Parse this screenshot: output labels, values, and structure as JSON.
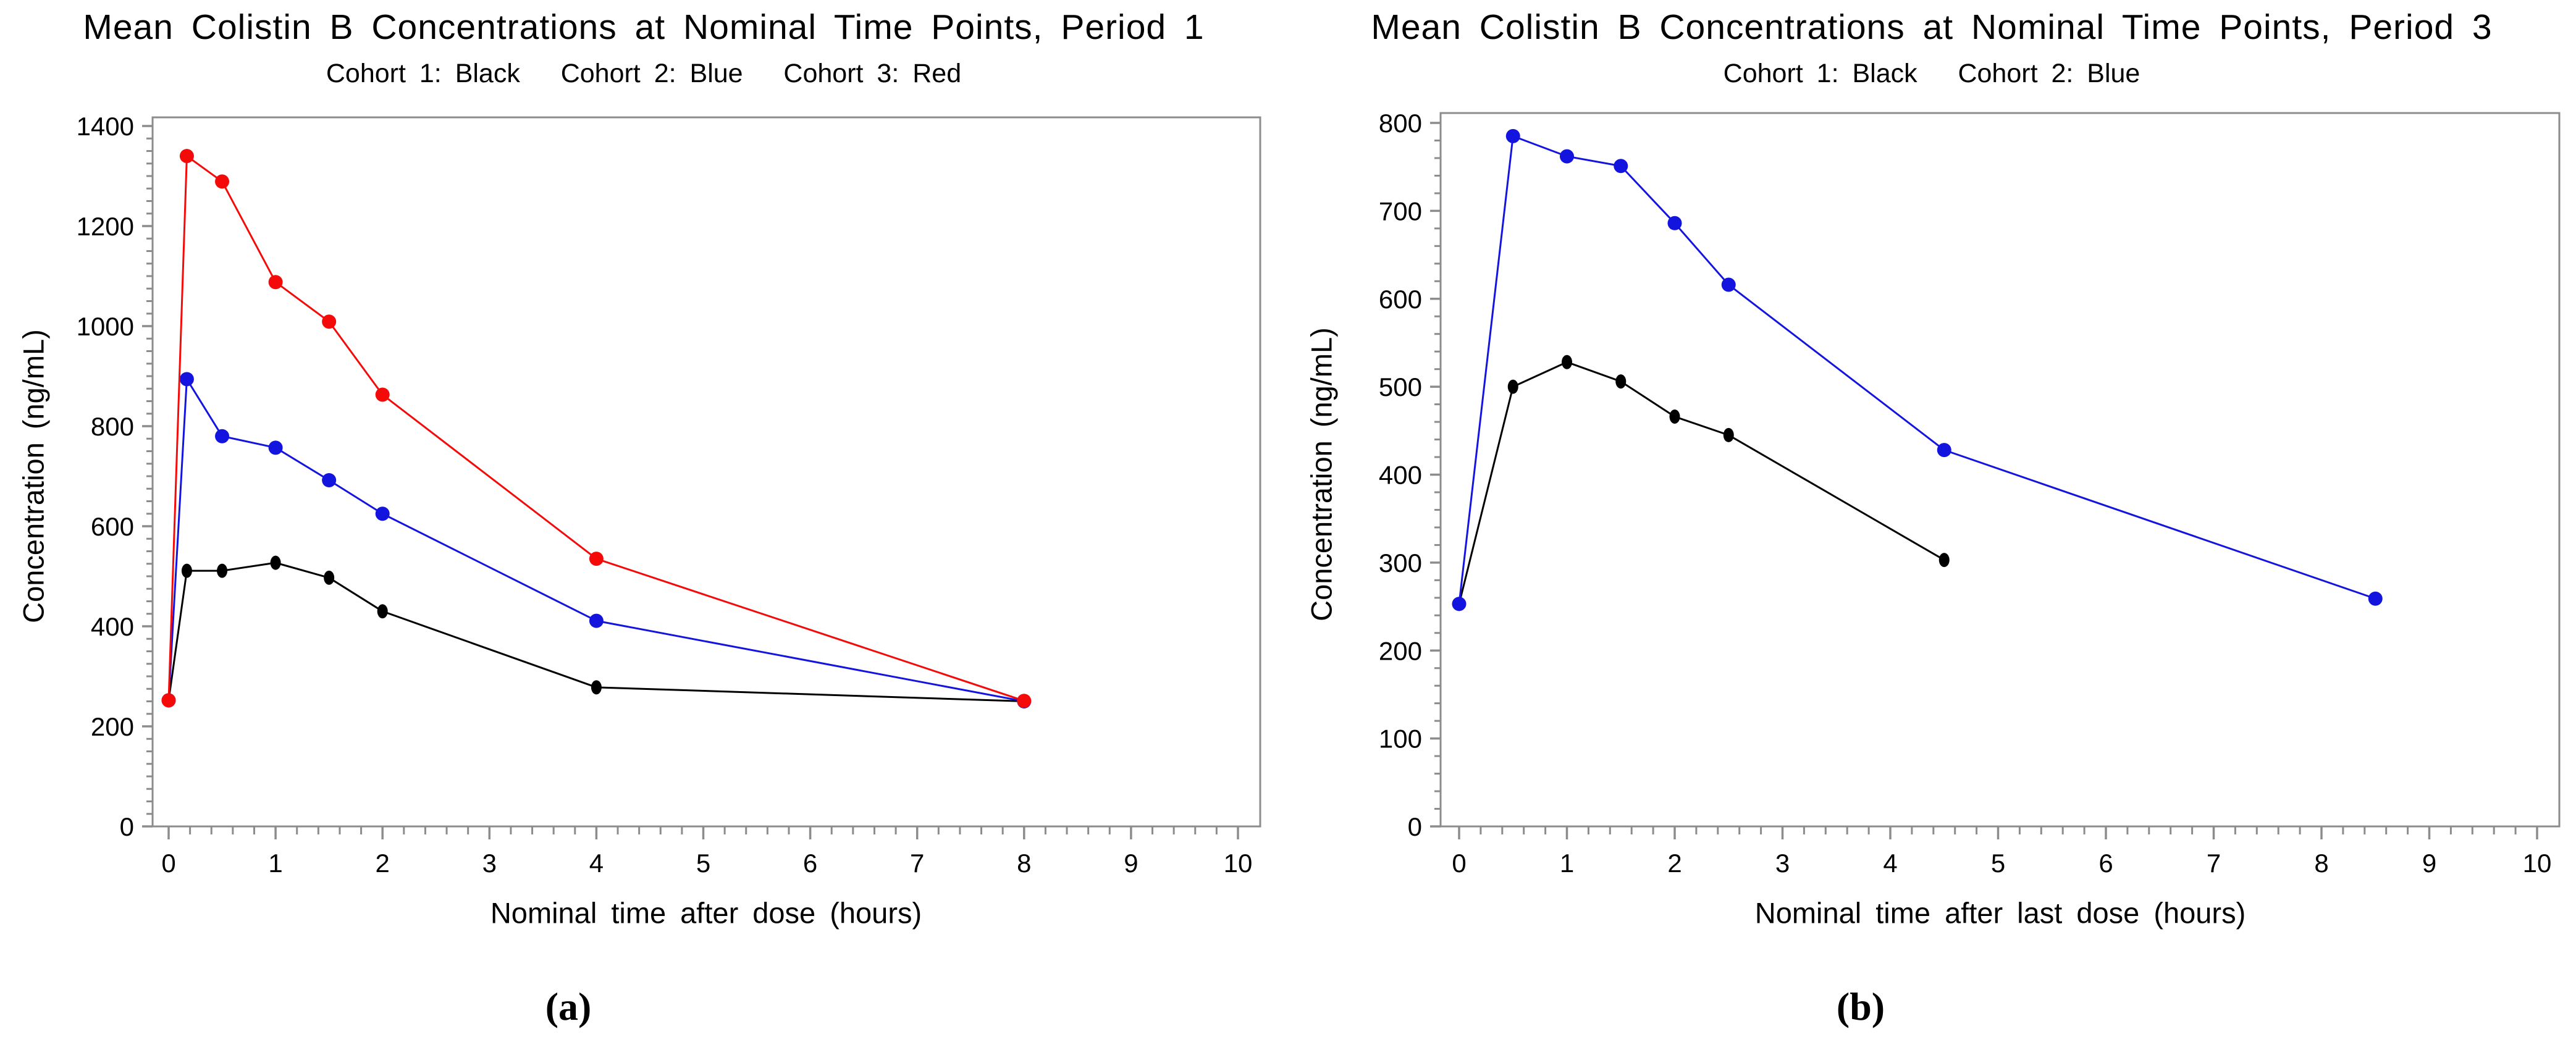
{
  "colors": {
    "cohort1_black": "#000000",
    "cohort2_blue": "#1414DF",
    "cohort3_red": "#F50A0A",
    "axis_frame_gray": "#8C8C8C",
    "text_black": "#000000"
  },
  "chart_data": [
    {
      "type": "line",
      "panel": "a",
      "title": "Mean Colistin B Concentrations at Nominal Time Points, Period 1",
      "subtitle": "Cohort 1: Black   Cohort 2: Blue   Cohort 3: Red",
      "xlabel": "Nominal time after dose (hours)",
      "ylabel": "Concentration (ng/mL)",
      "caption": "(a)",
      "xlim": [
        0,
        10
      ],
      "ylim": [
        0,
        1400
      ],
      "x_ticks": [
        0,
        1,
        2,
        3,
        4,
        5,
        6,
        7,
        8,
        9,
        10
      ],
      "y_ticks": [
        0,
        200,
        400,
        600,
        800,
        1000,
        1200,
        1400
      ],
      "x_minor_step": 0.2,
      "y_minor_step": 25,
      "grid": "off",
      "legend": "in-subtitle",
      "series": [
        {
          "name": "Cohort 1",
          "color_key": "cohort1_black",
          "x": [
            0,
            0.17,
            0.5,
            1,
            1.5,
            2,
            4,
            8
          ],
          "y": [
            252,
            511,
            511,
            527,
            497,
            430,
            278,
            250
          ]
        },
        {
          "name": "Cohort 2",
          "color_key": "cohort2_blue",
          "x": [
            0,
            0.17,
            0.5,
            1,
            1.5,
            2,
            4,
            8
          ],
          "y": [
            252,
            894,
            780,
            757,
            692,
            625,
            411,
            250
          ]
        },
        {
          "name": "Cohort 3",
          "color_key": "cohort3_red",
          "x": [
            0,
            0.17,
            0.5,
            1,
            1.5,
            2,
            4,
            8
          ],
          "y": [
            252,
            1340,
            1289,
            1088,
            1009,
            863,
            535,
            251
          ]
        }
      ]
    },
    {
      "type": "line",
      "panel": "b",
      "title": "Mean Colistin B Concentrations at Nominal Time Points, Period 3",
      "subtitle": "Cohort 1: Black   Cohort 2: Blue",
      "xlabel": "Nominal time after last dose (hours)",
      "ylabel": "Concentration (ng/mL)",
      "caption": "(b)",
      "xlim": [
        0,
        10
      ],
      "ylim": [
        0,
        800
      ],
      "x_ticks": [
        0,
        1,
        2,
        3,
        4,
        5,
        6,
        7,
        8,
        9,
        10
      ],
      "y_ticks": [
        0,
        100,
        200,
        300,
        400,
        500,
        600,
        700,
        800
      ],
      "x_minor_step": 0.2,
      "y_minor_step": 20,
      "grid": "off",
      "legend": "in-subtitle",
      "series": [
        {
          "name": "Cohort 1",
          "color_key": "cohort1_black",
          "x": [
            0,
            0.5,
            1,
            1.5,
            2,
            2.5,
            4.5
          ],
          "y": [
            253,
            500,
            528,
            506,
            466,
            445,
            303
          ]
        },
        {
          "name": "Cohort 2",
          "color_key": "cohort2_blue",
          "x": [
            0,
            0.5,
            1,
            1.5,
            2,
            2.5,
            4.5,
            8.5
          ],
          "y": [
            253,
            785,
            762,
            751,
            686,
            616,
            428,
            259
          ]
        }
      ]
    }
  ]
}
